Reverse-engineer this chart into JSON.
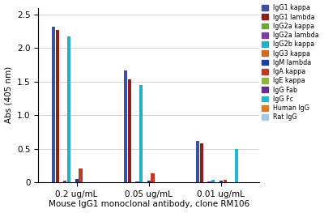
{
  "groups": [
    "0.2 ug/mL",
    "0.05 ug/mL",
    "0.01 ug/mL"
  ],
  "series": [
    {
      "label": "IgG1 kappa",
      "color": "#3c4fa0",
      "values": [
        2.32,
        1.67,
        0.62
      ]
    },
    {
      "label": "IgG1 lambda",
      "color": "#8b2020",
      "values": [
        2.27,
        1.53,
        0.58
      ]
    },
    {
      "label": "IgG2a kappa",
      "color": "#6aaa2c",
      "values": [
        0.0,
        0.0,
        0.0
      ]
    },
    {
      "label": "IgG2a lambda",
      "color": "#7b3fa0",
      "values": [
        0.02,
        0.01,
        0.01
      ]
    },
    {
      "label": "IgG2b kappa",
      "color": "#29afc4",
      "values": [
        2.17,
        1.45,
        0.04
      ]
    },
    {
      "label": "IgG3 kappa",
      "color": "#d2691e",
      "values": [
        0.0,
        0.0,
        0.0
      ]
    },
    {
      "label": "IgM lambda",
      "color": "#1c3fa0",
      "values": [
        0.05,
        0.02,
        0.02
      ]
    },
    {
      "label": "IgA kappa",
      "color": "#c0392b",
      "values": [
        0.2,
        0.13,
        0.04
      ]
    },
    {
      "label": "IgE kappa",
      "color": "#8db63c",
      "values": [
        0.0,
        0.0,
        0.0
      ]
    },
    {
      "label": "IgG Fab",
      "color": "#6a2d8f",
      "values": [
        0.0,
        0.0,
        0.0
      ]
    },
    {
      "label": "IgG Fc",
      "color": "#20b8cc",
      "values": [
        0.0,
        0.0,
        0.5
      ]
    },
    {
      "label": "Human IgG",
      "color": "#e07820",
      "values": [
        0.0,
        0.0,
        0.0
      ]
    },
    {
      "label": "Rat IgG",
      "color": "#a8c8e8",
      "values": [
        0.0,
        0.0,
        0.0
      ]
    }
  ],
  "ylabel": "Abs (405 nm)",
  "xlabel": "Mouse IgG1 monoclonal antibody, clone RM106",
  "ylim": [
    0,
    2.6
  ],
  "yticks": [
    0,
    0.5,
    1.0,
    1.5,
    2.0,
    2.5
  ],
  "figsize": [
    4.0,
    2.63
  ],
  "dpi": 100,
  "legend_fontsize": 5.8,
  "axis_fontsize": 7.5,
  "tick_fontsize": 7.5
}
